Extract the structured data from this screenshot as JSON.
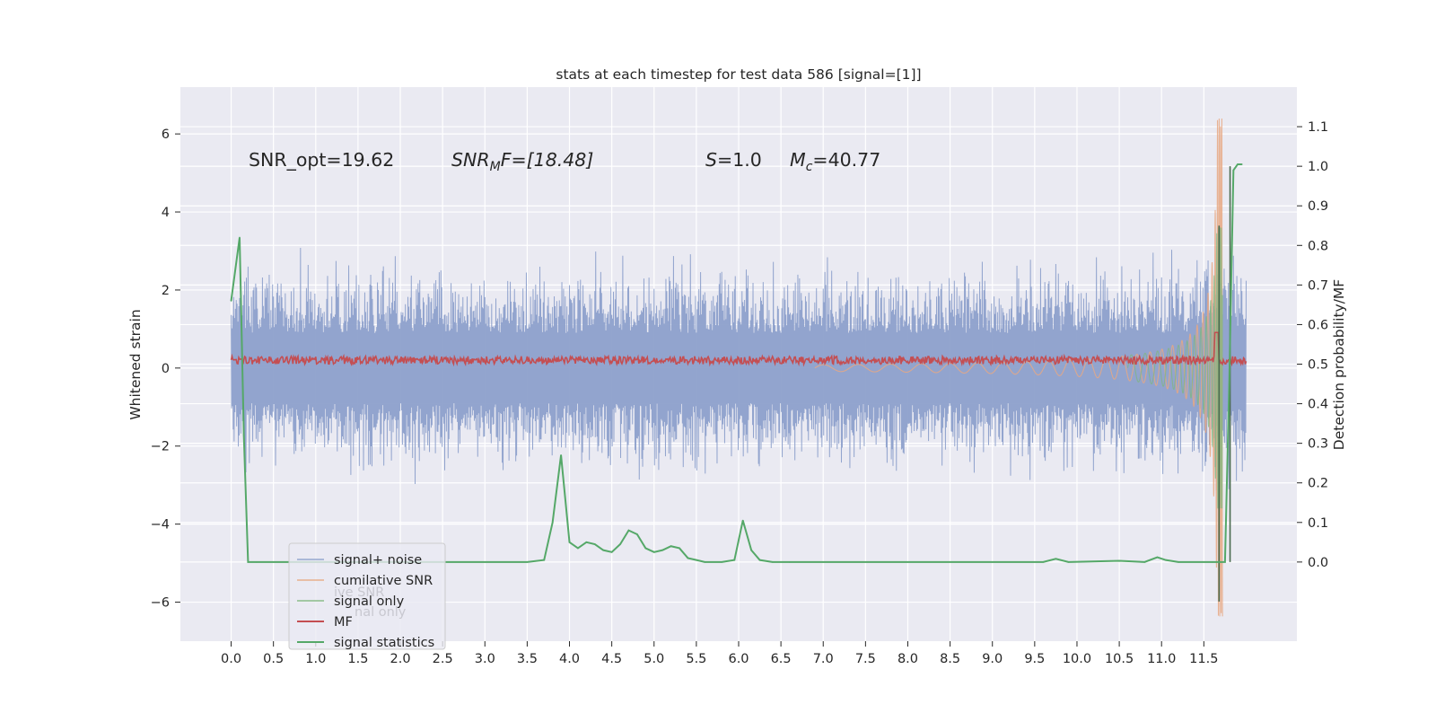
{
  "chart_data": {
    "type": "line",
    "title": "stats at each timestep for test data 586 [signal=[1]]",
    "xlabel": "",
    "ylabel_left": "Whitened strain",
    "ylabel_right": "Detection probability/MF",
    "x_ticks": [
      "0.0",
      "0.5",
      "1.0",
      "1.5",
      "2.0",
      "2.5",
      "3.0",
      "3.5",
      "4.0",
      "4.5",
      "5.0",
      "5.5",
      "6.0",
      "6.5",
      "7.0",
      "7.5",
      "8.0",
      "8.5",
      "9.0",
      "9.5",
      "10.0",
      "10.5",
      "11.0",
      "11.5"
    ],
    "y_left_ticks": [
      "6",
      "4",
      "2",
      "0",
      "−2",
      "−4",
      "−6"
    ],
    "y_right_ticks": [
      "1.1",
      "1.0",
      "0.9",
      "0.8",
      "0.7",
      "0.6",
      "0.5",
      "0.4",
      "0.3",
      "0.2",
      "0.1",
      "0.0"
    ],
    "xlim": [
      -0.6,
      12.6
    ],
    "ylim_left": [
      -7.0,
      7.2
    ],
    "ylim_right": [
      -0.2,
      1.2
    ],
    "grid": true,
    "legend_position": "lower-left",
    "annotations": {
      "snr_opt": "SNR_opt=19.62",
      "snr_mf_base": "SNR",
      "snr_mf_sub": "M",
      "snr_mf_rest": "F=[18.48]",
      "s_label": "S",
      "s_value": "=1.0",
      "mc_base": "M",
      "mc_sub": "c",
      "mc_value": "=40.77"
    },
    "series": [
      {
        "name": "signal+ noise",
        "color": "#8da0cb",
        "description": "noise band roughly ±1.8, spikes up to about ±2.8, growing near merger"
      },
      {
        "name": "cumilative SNR",
        "color": "#e8a882",
        "description": "chirp from about t=7.0, amplitude growing to about 6.5 near t=11.65"
      },
      {
        "name": "signal only",
        "color": "#7fb77e",
        "description": "chirp overlapping the merger region"
      },
      {
        "name": "MF",
        "color": "#c44e52",
        "values_note": "values on right axis",
        "x": [
          0.0,
          11.6,
          11.65,
          11.7,
          12.0
        ],
        "y": [
          0.51,
          0.51,
          0.58,
          0.51,
          0.51
        ]
      },
      {
        "name": "signal statistics",
        "color": "#55a868",
        "axis": "right",
        "x": [
          0.0,
          0.05,
          0.1,
          0.15,
          0.2,
          0.3,
          0.5,
          1.0,
          2.0,
          3.0,
          3.5,
          3.7,
          3.8,
          3.9,
          4.0,
          4.1,
          4.2,
          4.3,
          4.4,
          4.5,
          4.6,
          4.7,
          4.8,
          4.9,
          5.0,
          5.1,
          5.2,
          5.3,
          5.4,
          5.5,
          5.6,
          5.8,
          5.95,
          6.05,
          6.15,
          6.25,
          6.4,
          6.6,
          7.0,
          8.0,
          9.0,
          9.6,
          9.75,
          9.9,
          10.5,
          10.8,
          10.95,
          11.05,
          11.2,
          11.6,
          11.75,
          11.8,
          11.85,
          11.9,
          11.95
        ],
        "y": [
          0.66,
          0.74,
          0.82,
          0.32,
          0.0,
          0.0,
          0.0,
          0.0,
          0.0,
          0.0,
          0.0,
          0.005,
          0.1,
          0.27,
          0.05,
          0.035,
          0.05,
          0.045,
          0.03,
          0.025,
          0.045,
          0.08,
          0.07,
          0.035,
          0.025,
          0.03,
          0.04,
          0.035,
          0.01,
          0.005,
          0.0,
          0.0,
          0.005,
          0.105,
          0.03,
          0.005,
          0.0,
          0.0,
          0.0,
          0.0,
          0.0,
          0.0,
          0.008,
          0.0,
          0.003,
          0.0,
          0.012,
          0.005,
          0.0,
          0.0,
          0.0,
          0.45,
          0.99,
          1.005,
          1.005
        ]
      }
    ],
    "vlines": [
      {
        "x": 11.81,
        "y_range_right": [
          0.0,
          1.0
        ],
        "color": "#4a6a4f"
      },
      {
        "x": 11.68,
        "y_range_right": [
          -0.1,
          0.85
        ],
        "color": "#4a6a4f"
      }
    ]
  }
}
